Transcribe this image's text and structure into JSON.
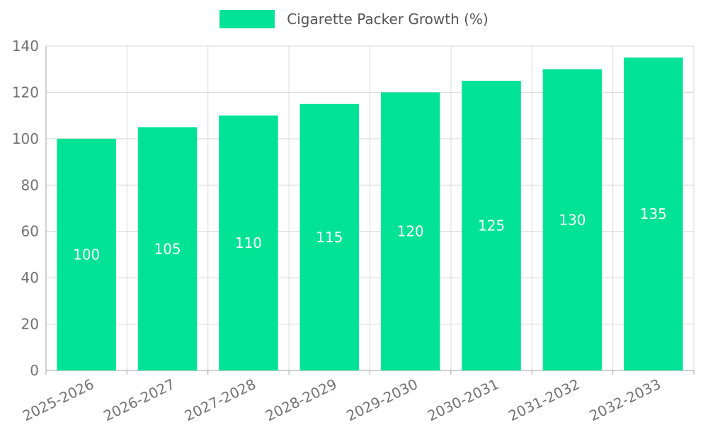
{
  "chart_data": {
    "type": "bar",
    "title": "Cigarette Packer Growth (%)",
    "series_name": "Cigarette Packer Growth (%)",
    "categories": [
      "2025-2026",
      "2026-2027",
      "2027-2028",
      "2028-2029",
      "2029-2030",
      "2030-2031",
      "2031-2032",
      "2032-2033"
    ],
    "values": [
      100,
      105,
      110,
      115,
      120,
      125,
      130,
      135
    ],
    "xlabel": "",
    "ylabel": "",
    "ylim": [
      0,
      140
    ],
    "ytick_step": 20,
    "yticks": [
      0,
      20,
      40,
      60,
      80,
      100,
      120,
      140
    ],
    "bar_color": "#00e396",
    "value_label_color": "#ffffff",
    "tick_label_color": "#737373",
    "grid_color": "#d9d9d9",
    "axis_color": "#a3a3a3",
    "grid": true,
    "legend_position": "top"
  }
}
